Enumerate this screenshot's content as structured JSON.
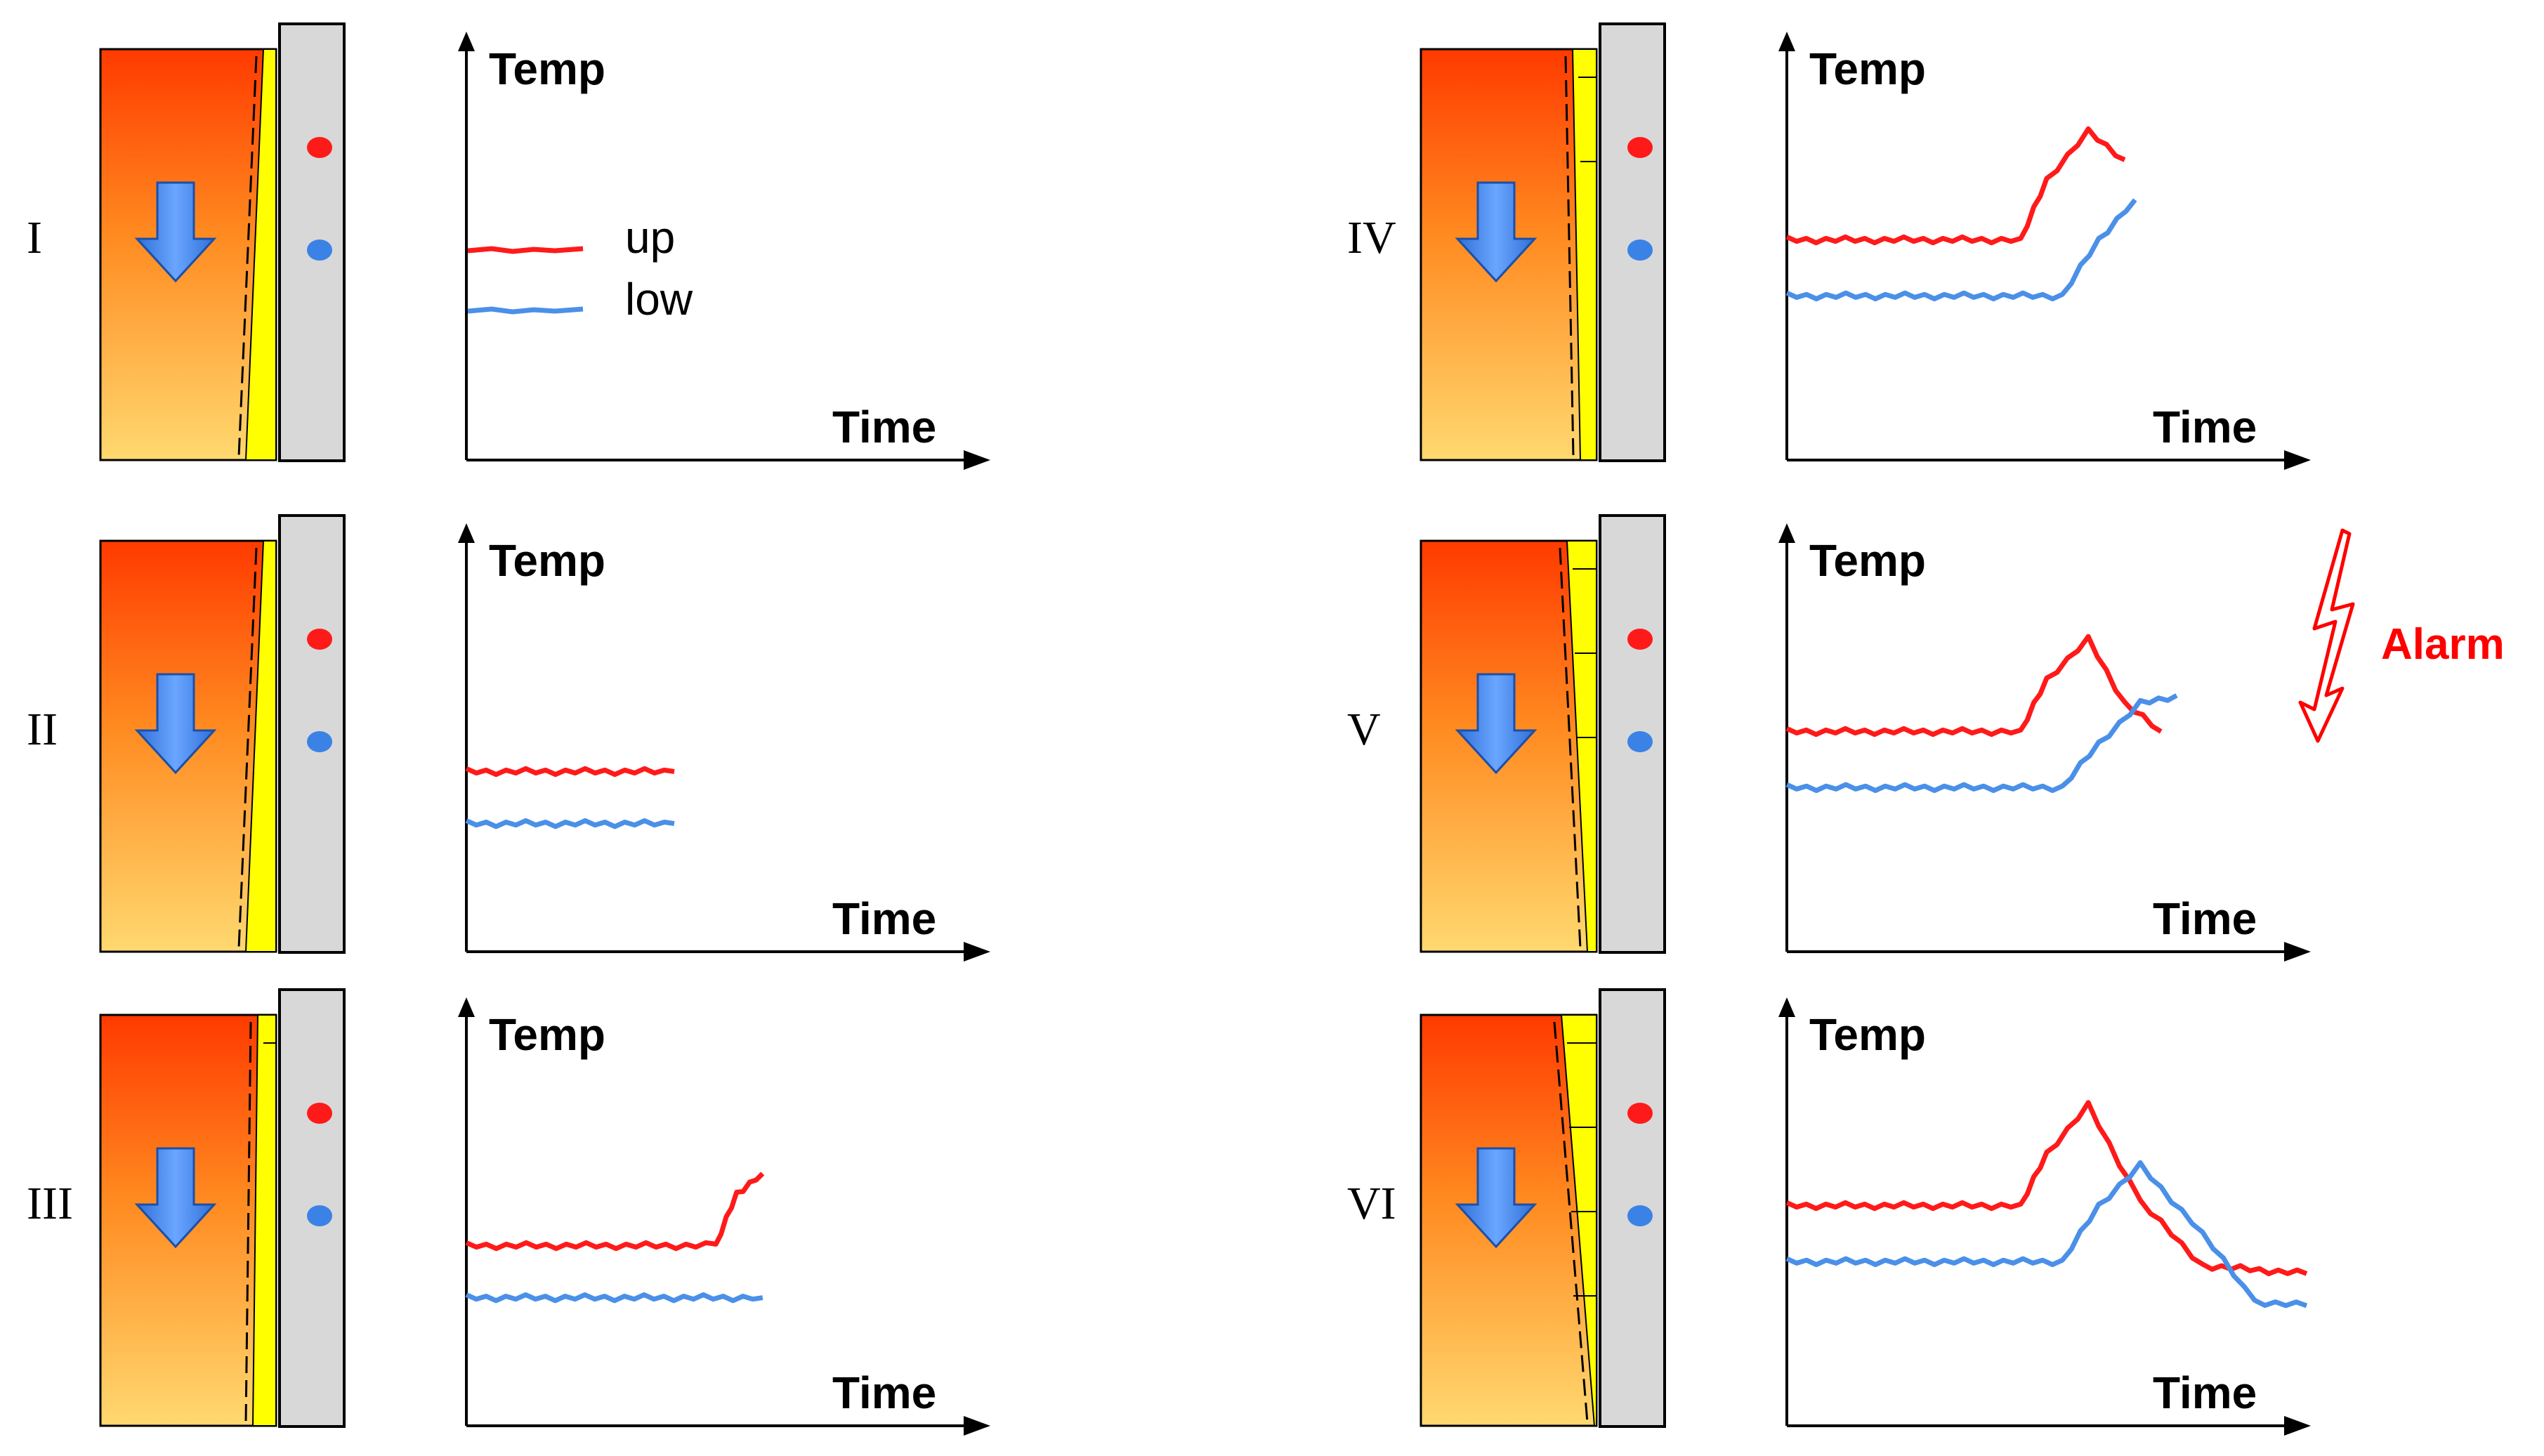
{
  "figure": {
    "panels": [
      {
        "id": "I",
        "label": "I",
        "y_label": "Temp",
        "x_label": "Time",
        "show_legend": true,
        "upper_series": [],
        "lower_series": [],
        "cover_level": 0
      },
      {
        "id": "II",
        "label": "II",
        "y_label": "Temp",
        "x_label": "Time",
        "show_legend": false,
        "upper_series": [
          [
            0.0,
            0.45
          ],
          [
            0.4,
            0.45
          ]
        ],
        "lower_series": [
          [
            0.0,
            0.32
          ],
          [
            0.4,
            0.32
          ]
        ],
        "cover_level": 0
      },
      {
        "id": "III",
        "label": "III",
        "y_label": "Temp",
        "x_label": "Time",
        "show_legend": false,
        "upper_series": [
          [
            0.0,
            0.45
          ],
          [
            0.48,
            0.45
          ],
          [
            0.52,
            0.58
          ],
          [
            0.57,
            0.63
          ]
        ],
        "lower_series": [
          [
            0.0,
            0.32
          ],
          [
            0.57,
            0.32
          ]
        ],
        "cover_level": 1
      },
      {
        "id": "IV",
        "label": "IV",
        "y_label": "Temp",
        "x_label": "Time",
        "show_legend": false,
        "upper_series": [
          [
            0.0,
            0.55
          ],
          [
            0.45,
            0.55
          ],
          [
            0.5,
            0.7
          ],
          [
            0.58,
            0.82
          ],
          [
            0.65,
            0.75
          ]
        ],
        "lower_series": [
          [
            0.0,
            0.41
          ],
          [
            0.53,
            0.41
          ],
          [
            0.6,
            0.55
          ],
          [
            0.67,
            0.65
          ]
        ],
        "cover_level": 2
      },
      {
        "id": "V",
        "label": "V",
        "y_label": "Temp",
        "x_label": "Time",
        "show_legend": false,
        "upper_series": [
          [
            0.0,
            0.55
          ],
          [
            0.45,
            0.55
          ],
          [
            0.5,
            0.68
          ],
          [
            0.58,
            0.78
          ],
          [
            0.65,
            0.62
          ],
          [
            0.72,
            0.55
          ]
        ],
        "lower_series": [
          [
            0.0,
            0.41
          ],
          [
            0.53,
            0.41
          ],
          [
            0.6,
            0.52
          ],
          [
            0.68,
            0.62
          ],
          [
            0.75,
            0.64
          ]
        ],
        "cover_level": 3
      },
      {
        "id": "VI",
        "label": "VI",
        "y_label": "Temp",
        "x_label": "Time",
        "show_legend": false,
        "upper_series": [
          [
            0.0,
            0.55
          ],
          [
            0.45,
            0.55
          ],
          [
            0.5,
            0.68
          ],
          [
            0.58,
            0.8
          ],
          [
            0.68,
            0.56
          ],
          [
            0.8,
            0.4
          ],
          [
            1.0,
            0.38
          ]
        ],
        "lower_series": [
          [
            0.0,
            0.41
          ],
          [
            0.53,
            0.41
          ],
          [
            0.6,
            0.55
          ],
          [
            0.68,
            0.65
          ],
          [
            0.8,
            0.48
          ],
          [
            0.9,
            0.31
          ],
          [
            1.0,
            0.3
          ]
        ],
        "cover_level": 4
      }
    ],
    "legend": {
      "upper_label": "up",
      "lower_label": "low"
    },
    "alarm": {
      "text": "Alarm",
      "panel": "V"
    },
    "colors": {
      "upper": "#ff1a1a",
      "lower": "#4a90e8",
      "alarm": "#ff0000",
      "wall": "#d8d8d8",
      "yellow": "#ffff00",
      "arrow": "#4a8cf0",
      "sensor_upper": "#ff1a1a",
      "sensor_lower": "#3b82e6"
    }
  }
}
